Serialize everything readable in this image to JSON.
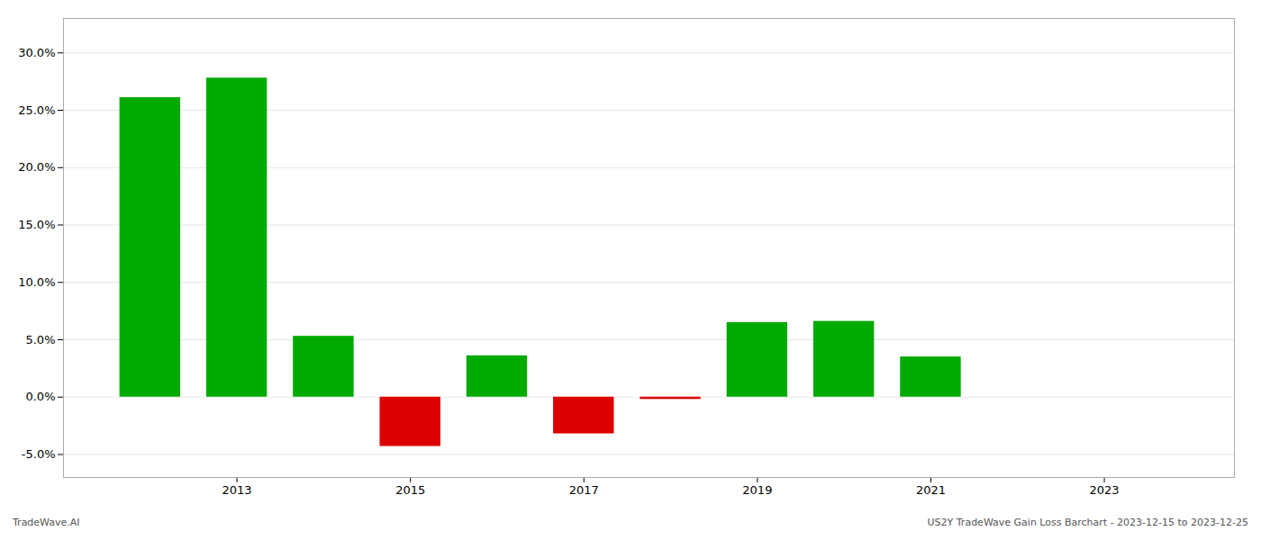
{
  "chart_data": {
    "type": "bar",
    "x": [
      2012,
      2013,
      2014,
      2015,
      2016,
      2017,
      2018,
      2019,
      2020,
      2021,
      2022
    ],
    "values": [
      0.261,
      0.278,
      0.053,
      -0.043,
      0.036,
      -0.032,
      -0.002,
      0.065,
      0.066,
      0.035,
      0.0
    ],
    "colors": [
      "#00aa00",
      "#00aa00",
      "#00aa00",
      "#dd0000",
      "#00aa00",
      "#dd0000",
      "#dd0000",
      "#00aa00",
      "#00aa00",
      "#00aa00",
      "#00aa00"
    ],
    "xlim": [
      2011.0,
      2024.5
    ],
    "xticks": [
      2013,
      2015,
      2017,
      2019,
      2021,
      2023
    ],
    "ylim": [
      -0.07,
      0.33
    ],
    "yticks": [
      {
        "value": -0.05,
        "label": "-5.0%"
      },
      {
        "value": 0.0,
        "label": "0.0%"
      },
      {
        "value": 0.05,
        "label": "5.0%"
      },
      {
        "value": 0.1,
        "label": "10.0%"
      },
      {
        "value": 0.15,
        "label": "15.0%"
      },
      {
        "value": 0.2,
        "label": "20.0%"
      },
      {
        "value": 0.25,
        "label": "25.0%"
      },
      {
        "value": 0.3,
        "label": "30.0%"
      }
    ],
    "grid": true,
    "annotations": [
      "TradeWave.AI",
      "US2Y TradeWave Gain Loss Barchart - 2023-12-15 to 2023-12-25"
    ]
  }
}
